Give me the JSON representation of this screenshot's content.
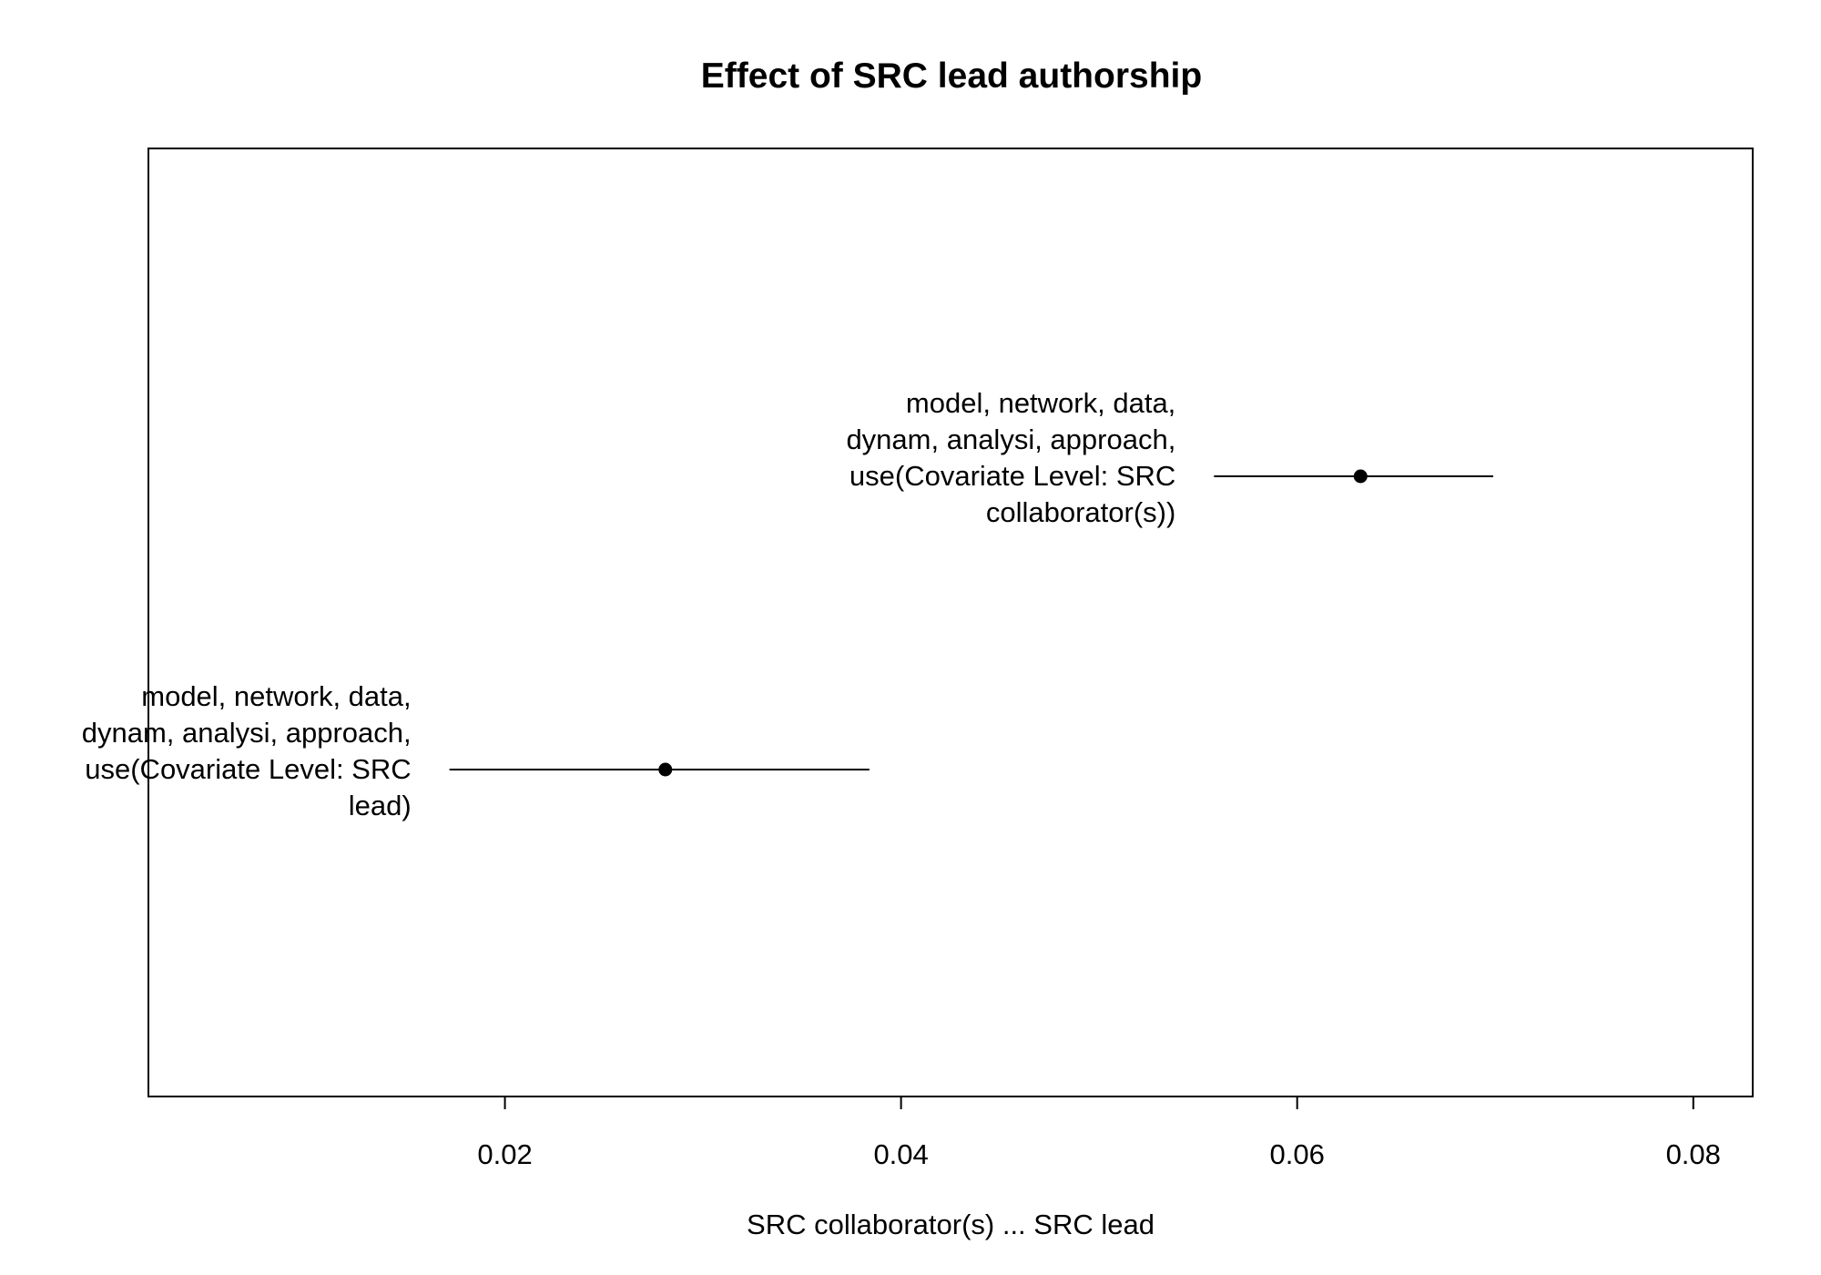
{
  "chart_data": {
    "type": "scatter",
    "title": "Effect of SRC lead authorship",
    "xlabel": "SRC collaborator(s) ... SRC lead",
    "ylabel": "",
    "xlim": [
      0.002,
      0.083
    ],
    "x_ticks": [
      0.02,
      0.04,
      0.06,
      0.08
    ],
    "x_tick_labels": [
      "0.02",
      "0.04",
      "0.06",
      "0.08"
    ],
    "grid": false,
    "estimates": [
      {
        "label_lines": [
          "model, network, data,",
          "dynam, analysi, approach,",
          "use(Covariate Level: SRC",
          "collaborator(s))"
        ],
        "estimate": 0.0632,
        "ci_low": 0.0558,
        "ci_high": 0.0699
      },
      {
        "label_lines": [
          "model, network, data,",
          "dynam, analysi, approach,",
          "use(Covariate Level: SRC",
          "lead)"
        ],
        "estimate": 0.0281,
        "ci_low": 0.0172,
        "ci_high": 0.0384
      }
    ],
    "colors": {
      "ink": "#000000",
      "background": "#ffffff"
    }
  }
}
